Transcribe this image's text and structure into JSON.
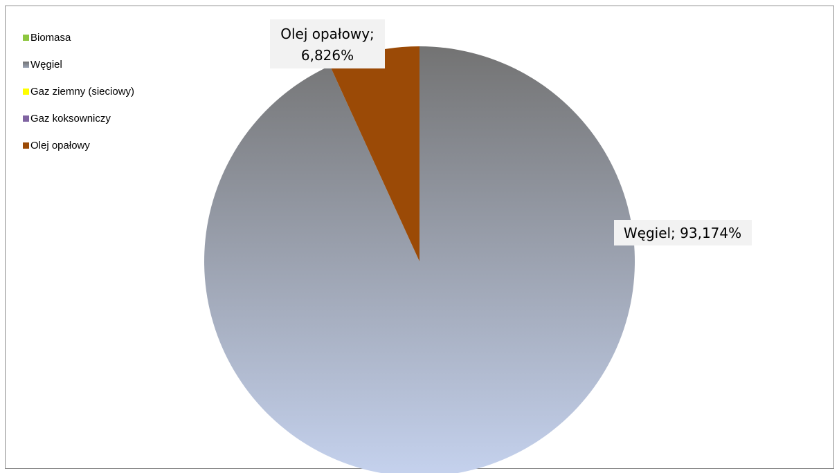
{
  "chart_data": {
    "type": "pie",
    "title": "",
    "categories": [
      "Biomasa",
      "Węgiel",
      "Gaz ziemny (sieciowy)",
      "Gaz koksowniczy",
      "Olej opałowy"
    ],
    "values": [
      0,
      93.174,
      0,
      0,
      6.826
    ],
    "unit": "%",
    "colors": [
      "#8dc63f",
      "#7f7f7f",
      "#ffff00",
      "#8064a2",
      "#9b4a06"
    ],
    "slice_gradient": {
      "Węgiel": [
        "#737373",
        "#c5d2ee"
      ]
    },
    "start_angle_deg": 0,
    "direction": "clockwise",
    "legend_position": "left",
    "data_labels": [
      {
        "category": "Węgiel",
        "text": "Węgiel; 93,174%"
      },
      {
        "category": "Olej opałowy",
        "line1": "Olej opałowy;",
        "line2": "6,826%"
      }
    ]
  }
}
